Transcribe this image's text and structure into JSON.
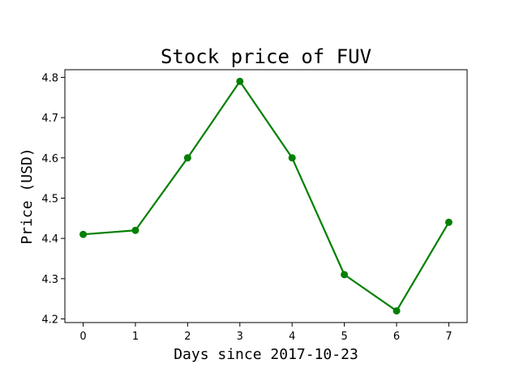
{
  "chart_data": {
    "type": "line",
    "title": "Stock price of FUV",
    "xlabel": "Days since 2017-10-23",
    "ylabel": "Price (USD)",
    "x": [
      0,
      1,
      2,
      3,
      4,
      5,
      6,
      7
    ],
    "series": [
      {
        "values": [
          4.41,
          4.42,
          4.6,
          4.79,
          4.6,
          4.31,
          4.22,
          4.44
        ],
        "color": "#008000",
        "marker": "circle"
      }
    ],
    "xlim": [
      -0.35,
      7.35
    ],
    "ylim": [
      4.191,
      4.819
    ],
    "xticks": [
      "0",
      "1",
      "2",
      "3",
      "4",
      "5",
      "6",
      "7"
    ],
    "yticks": [
      "4.2",
      "4.3",
      "4.4",
      "4.5",
      "4.6",
      "4.7",
      "4.8"
    ],
    "grid": false,
    "legend": "none"
  }
}
